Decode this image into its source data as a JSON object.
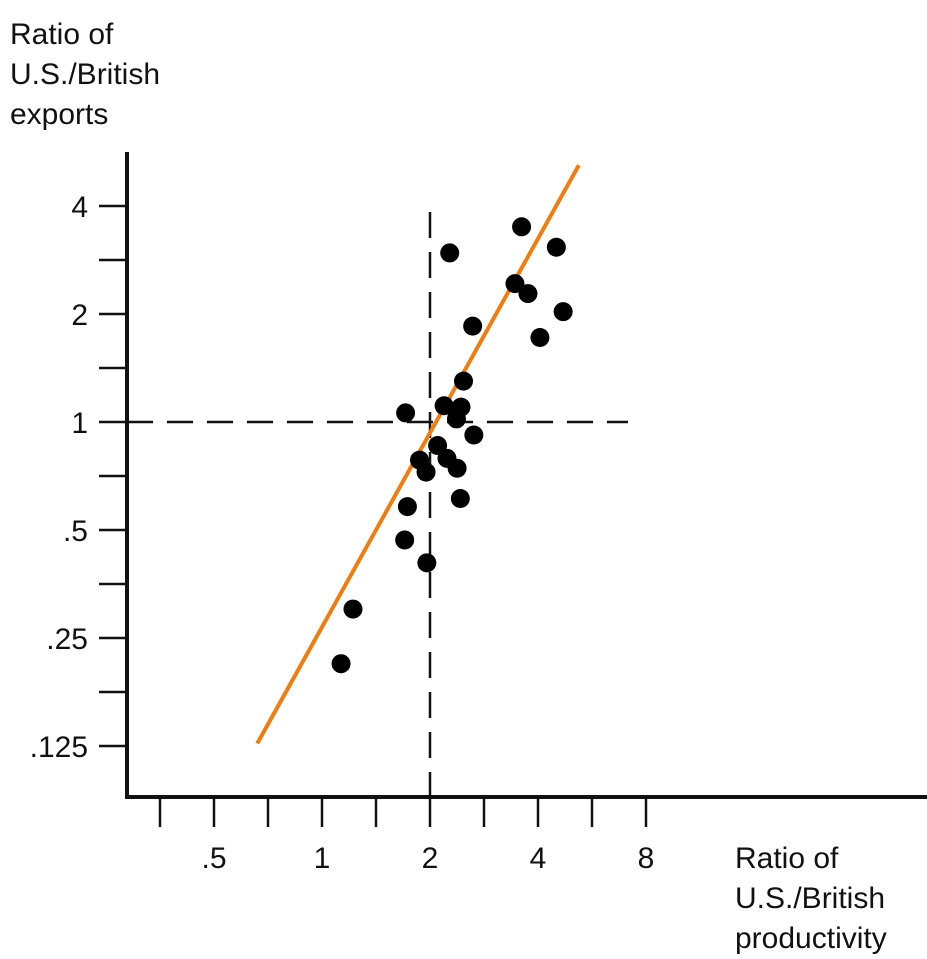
{
  "chart_data": {
    "type": "scatter",
    "ylabel_lines": [
      "Ratio of",
      "U.S./British",
      "exports"
    ],
    "xlabel_lines": [
      "Ratio of",
      "U.S./British",
      "productivity"
    ],
    "x_scale": "log2",
    "y_scale": "log2",
    "x_ticks": [
      0.5,
      1,
      2,
      4,
      8
    ],
    "x_tick_labels": [
      ".5",
      "1",
      "2",
      "4",
      "8"
    ],
    "y_ticks": [
      0.125,
      0.25,
      0.5,
      1,
      2,
      4
    ],
    "y_tick_labels": [
      ".125",
      ".25",
      ".5",
      "1",
      "2",
      "4"
    ],
    "reference_lines": {
      "x": 2,
      "y": 1
    },
    "line_color": "#f07d0f",
    "point_color": "#000000",
    "fit_line": [
      [
        0.66,
        0.127
      ],
      [
        5.2,
        5.2
      ]
    ],
    "points": [
      [
        1.13,
        0.212
      ],
      [
        1.22,
        0.301
      ],
      [
        1.7,
        0.469
      ],
      [
        1.73,
        0.581
      ],
      [
        1.71,
        1.06
      ],
      [
        1.96,
        0.405
      ],
      [
        1.87,
        0.783
      ],
      [
        1.95,
        0.725
      ],
      [
        2.1,
        0.86
      ],
      [
        2.23,
        0.792
      ],
      [
        2.19,
        1.11
      ],
      [
        2.27,
        2.96
      ],
      [
        2.38,
        0.743
      ],
      [
        2.37,
        1.02
      ],
      [
        2.44,
        1.1
      ],
      [
        2.43,
        0.612
      ],
      [
        2.48,
        1.3
      ],
      [
        2.65,
        0.92
      ],
      [
        2.63,
        1.85
      ],
      [
        3.45,
        2.43
      ],
      [
        3.6,
        3.5
      ],
      [
        3.75,
        2.28
      ],
      [
        4.05,
        1.72
      ],
      [
        4.5,
        3.07
      ],
      [
        4.7,
        2.03
      ]
    ]
  }
}
